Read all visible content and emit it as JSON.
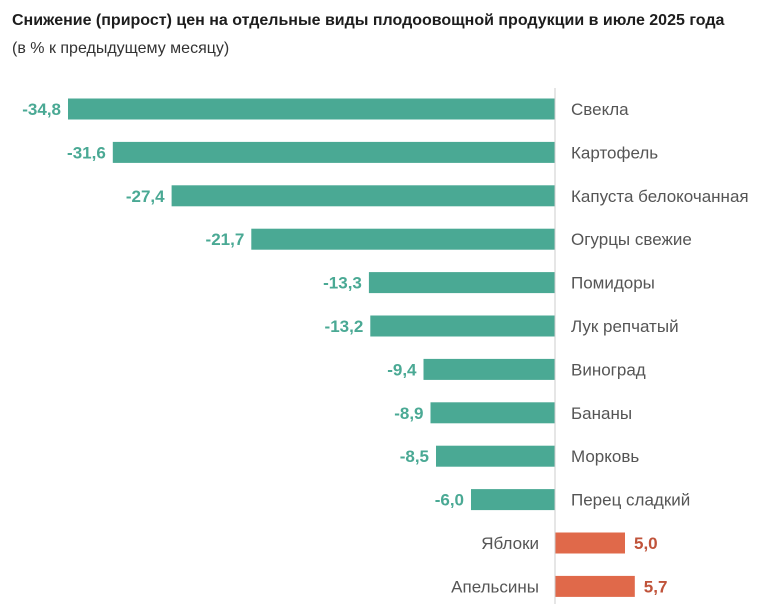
{
  "chart_data": {
    "type": "bar",
    "orientation": "horizontal",
    "title": "Снижение (прирост) цен на отдельные виды плодоовощной продукции в июле 2025 года",
    "subtitle": "(в % к предыдущему месяцу)",
    "categories": [
      "Свекла",
      "Картофель",
      "Капуста белокочанная",
      "Огурцы свежие",
      "Помидоры",
      "Лук репчатый",
      "Виноград",
      "Бананы",
      "Морковь",
      "Перец сладкий",
      "Яблоки",
      "Апельсины"
    ],
    "values": [
      -34.8,
      -31.6,
      -27.4,
      -21.7,
      -13.3,
      -13.2,
      -9.4,
      -8.9,
      -8.5,
      -6.0,
      5.0,
      5.7
    ],
    "value_labels": [
      "-34,8",
      "-31,6",
      "-27,4",
      "-21,7",
      "-13,3",
      "-13,2",
      "-9,4",
      "-8,9",
      "-8,5",
      "-6,0",
      "5,0",
      "5,7"
    ],
    "xlim": [
      -34.8,
      5.7
    ],
    "colors": {
      "negative": "#4aa994",
      "positive": "#e0694a",
      "negative_label": "#4aa994",
      "positive_label": "#c0533a",
      "axis": "#cccccc"
    }
  }
}
